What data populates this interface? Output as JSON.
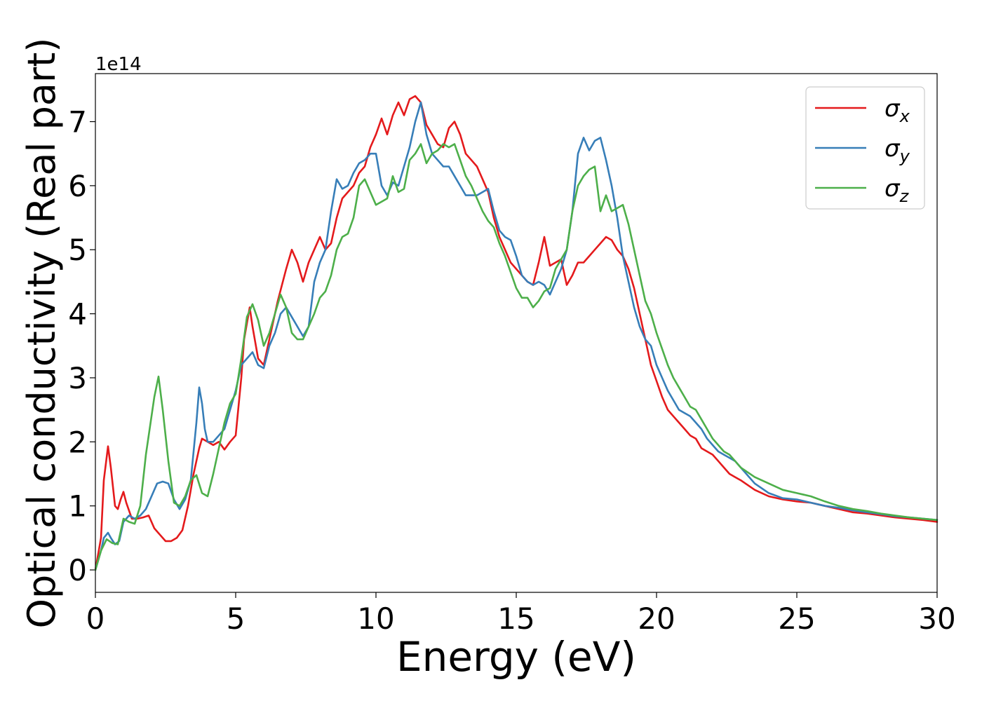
{
  "chart_data": {
    "type": "line",
    "title": "",
    "xlabel": "Energy (eV)",
    "ylabel": "Optical conductivity (Real part)",
    "y_offset_label": "1e14",
    "xlim": [
      0,
      30
    ],
    "ylim": [
      -0.35,
      7.75
    ],
    "xticks": [
      0,
      5,
      10,
      15,
      20,
      25,
      30
    ],
    "yticks": [
      0,
      1,
      2,
      3,
      4,
      5,
      6,
      7
    ],
    "grid": false,
    "legend_position": "top-right",
    "series": [
      {
        "name": "σx",
        "symbol": "σ",
        "subscript": "x",
        "color": "#e41a1c",
        "x": [
          0,
          0.2,
          0.3,
          0.45,
          0.55,
          0.7,
          0.8,
          0.9,
          1.0,
          1.1,
          1.3,
          1.5,
          1.7,
          1.9,
          2.1,
          2.3,
          2.5,
          2.7,
          2.9,
          3.1,
          3.3,
          3.5,
          3.7,
          3.8,
          4.0,
          4.2,
          4.4,
          4.6,
          4.8,
          5.0,
          5.2,
          5.3,
          5.5,
          5.6,
          5.8,
          6.0,
          6.2,
          6.5,
          6.8,
          7.0,
          7.2,
          7.4,
          7.6,
          7.8,
          8.0,
          8.2,
          8.4,
          8.6,
          8.8,
          9.0,
          9.2,
          9.4,
          9.6,
          9.8,
          10.0,
          10.2,
          10.4,
          10.6,
          10.8,
          11.0,
          11.2,
          11.4,
          11.6,
          11.8,
          12.0,
          12.2,
          12.4,
          12.6,
          12.8,
          13.0,
          13.2,
          13.4,
          13.6,
          13.8,
          14.0,
          14.2,
          14.4,
          14.6,
          14.8,
          15.0,
          15.2,
          15.4,
          15.6,
          15.8,
          16.0,
          16.2,
          16.4,
          16.6,
          16.8,
          17.0,
          17.2,
          17.4,
          17.6,
          17.8,
          18.0,
          18.2,
          18.4,
          18.6,
          18.8,
          19.0,
          19.2,
          19.4,
          19.6,
          19.8,
          20.0,
          20.2,
          20.4,
          20.6,
          20.8,
          21.0,
          21.2,
          21.4,
          21.6,
          21.8,
          22.0,
          22.2,
          22.4,
          22.6,
          22.8,
          23.0,
          23.5,
          24.0,
          24.5,
          25.0,
          25.5,
          26.0,
          26.5,
          27.0,
          27.5,
          28.0,
          28.5,
          29.0,
          29.5,
          30.0
        ],
        "y": [
          0.0,
          0.5,
          1.4,
          1.93,
          1.6,
          1.0,
          0.95,
          1.1,
          1.22,
          1.05,
          0.8,
          0.8,
          0.82,
          0.85,
          0.65,
          0.55,
          0.45,
          0.45,
          0.5,
          0.62,
          1.0,
          1.5,
          1.9,
          2.05,
          2.0,
          1.95,
          2.0,
          1.88,
          2.0,
          2.1,
          3.0,
          3.6,
          4.1,
          3.8,
          3.3,
          3.2,
          3.6,
          4.2,
          4.7,
          5.0,
          4.8,
          4.5,
          4.8,
          5.0,
          5.2,
          5.0,
          5.1,
          5.5,
          5.8,
          5.9,
          6.0,
          6.2,
          6.3,
          6.6,
          6.8,
          7.05,
          6.8,
          7.1,
          7.3,
          7.1,
          7.35,
          7.4,
          7.3,
          6.95,
          6.8,
          6.65,
          6.6,
          6.9,
          7.0,
          6.8,
          6.5,
          6.4,
          6.3,
          6.1,
          5.9,
          5.5,
          5.2,
          5.0,
          4.8,
          4.7,
          4.6,
          4.5,
          4.45,
          4.8,
          5.2,
          4.75,
          4.8,
          4.85,
          4.45,
          4.6,
          4.8,
          4.8,
          4.9,
          5.0,
          5.1,
          5.2,
          5.15,
          5.0,
          4.9,
          4.7,
          4.4,
          4.0,
          3.6,
          3.2,
          2.95,
          2.7,
          2.5,
          2.4,
          2.3,
          2.2,
          2.1,
          2.05,
          1.9,
          1.85,
          1.8,
          1.7,
          1.6,
          1.5,
          1.45,
          1.4,
          1.25,
          1.15,
          1.1,
          1.07,
          1.05,
          1.0,
          0.95,
          0.9,
          0.88,
          0.85,
          0.82,
          0.8,
          0.78,
          0.75
        ]
      },
      {
        "name": "σy",
        "symbol": "σ",
        "subscript": "y",
        "color": "#377eb8",
        "x": [
          0,
          0.2,
          0.3,
          0.45,
          0.55,
          0.7,
          0.85,
          1.0,
          1.2,
          1.4,
          1.6,
          1.8,
          2.0,
          2.2,
          2.4,
          2.6,
          2.8,
          3.0,
          3.2,
          3.4,
          3.6,
          3.7,
          3.8,
          3.9,
          4.0,
          4.2,
          4.4,
          4.6,
          4.8,
          5.0,
          5.2,
          5.4,
          5.6,
          5.8,
          6.0,
          6.2,
          6.4,
          6.6,
          6.8,
          7.0,
          7.2,
          7.4,
          7.6,
          7.8,
          8.0,
          8.2,
          8.4,
          8.6,
          8.8,
          9.0,
          9.2,
          9.4,
          9.6,
          9.8,
          10.0,
          10.2,
          10.4,
          10.6,
          10.8,
          11.0,
          11.2,
          11.4,
          11.6,
          11.8,
          12.0,
          12.2,
          12.4,
          12.6,
          12.8,
          13.0,
          13.2,
          13.4,
          13.6,
          13.8,
          14.0,
          14.2,
          14.4,
          14.6,
          14.8,
          15.0,
          15.2,
          15.4,
          15.6,
          15.8,
          16.0,
          16.2,
          16.4,
          16.6,
          16.8,
          17.0,
          17.2,
          17.4,
          17.6,
          17.8,
          18.0,
          18.2,
          18.4,
          18.6,
          18.8,
          19.0,
          19.2,
          19.4,
          19.6,
          19.8,
          20.0,
          20.2,
          20.4,
          20.6,
          20.8,
          21.0,
          21.2,
          21.4,
          21.6,
          21.8,
          22.0,
          22.2,
          22.4,
          22.6,
          22.8,
          23.0,
          23.5,
          24.0,
          24.5,
          25.0,
          25.5,
          26.0,
          26.5,
          27.0,
          27.5,
          28.0,
          28.5,
          29.0,
          29.5,
          30.0
        ],
        "y": [
          0.0,
          0.3,
          0.5,
          0.58,
          0.5,
          0.4,
          0.45,
          0.75,
          0.85,
          0.8,
          0.85,
          0.95,
          1.15,
          1.35,
          1.38,
          1.35,
          1.1,
          0.95,
          1.1,
          1.4,
          2.3,
          2.85,
          2.6,
          2.2,
          2.0,
          2.0,
          2.1,
          2.2,
          2.5,
          2.8,
          3.2,
          3.3,
          3.4,
          3.2,
          3.15,
          3.5,
          3.7,
          4.0,
          4.1,
          3.95,
          3.8,
          3.65,
          3.8,
          4.5,
          4.8,
          5.0,
          5.6,
          6.1,
          5.95,
          6.0,
          6.2,
          6.35,
          6.4,
          6.5,
          6.5,
          6.0,
          5.85,
          6.05,
          6.0,
          6.3,
          6.6,
          7.0,
          7.3,
          6.8,
          6.5,
          6.4,
          6.3,
          6.3,
          6.15,
          6.0,
          5.85,
          5.85,
          5.85,
          5.9,
          5.95,
          5.6,
          5.3,
          5.2,
          5.15,
          4.9,
          4.6,
          4.5,
          4.45,
          4.5,
          4.45,
          4.3,
          4.5,
          4.7,
          5.0,
          5.6,
          6.5,
          6.75,
          6.55,
          6.7,
          6.75,
          6.4,
          6.0,
          5.5,
          4.9,
          4.5,
          4.1,
          3.8,
          3.6,
          3.5,
          3.2,
          3.0,
          2.8,
          2.65,
          2.5,
          2.45,
          2.4,
          2.3,
          2.2,
          2.05,
          1.95,
          1.85,
          1.8,
          1.75,
          1.7,
          1.6,
          1.35,
          1.2,
          1.12,
          1.1,
          1.05,
          1.0,
          0.97,
          0.93,
          0.9,
          0.87,
          0.84,
          0.82,
          0.8,
          0.78
        ]
      },
      {
        "name": "σz",
        "symbol": "σ",
        "subscript": "z",
        "color": "#4daf4a",
        "x": [
          0,
          0.2,
          0.4,
          0.6,
          0.8,
          1.0,
          1.2,
          1.4,
          1.6,
          1.8,
          2.0,
          2.1,
          2.25,
          2.4,
          2.6,
          2.8,
          3.0,
          3.2,
          3.4,
          3.6,
          3.8,
          4.0,
          4.2,
          4.4,
          4.6,
          4.8,
          5.0,
          5.2,
          5.4,
          5.6,
          5.8,
          6.0,
          6.2,
          6.4,
          6.6,
          6.8,
          7.0,
          7.2,
          7.4,
          7.6,
          7.8,
          8.0,
          8.2,
          8.4,
          8.6,
          8.8,
          9.0,
          9.2,
          9.4,
          9.6,
          9.8,
          10.0,
          10.2,
          10.4,
          10.6,
          10.8,
          11.0,
          11.2,
          11.4,
          11.6,
          11.8,
          12.0,
          12.2,
          12.4,
          12.6,
          12.8,
          13.0,
          13.2,
          13.4,
          13.6,
          13.8,
          14.0,
          14.2,
          14.4,
          14.6,
          14.8,
          15.0,
          15.2,
          15.4,
          15.6,
          15.8,
          16.0,
          16.2,
          16.4,
          16.6,
          16.8,
          17.0,
          17.2,
          17.4,
          17.6,
          17.8,
          18.0,
          18.2,
          18.4,
          18.6,
          18.8,
          19.0,
          19.2,
          19.4,
          19.6,
          19.8,
          20.0,
          20.2,
          20.4,
          20.6,
          20.8,
          21.0,
          21.2,
          21.4,
          21.6,
          21.8,
          22.0,
          22.2,
          22.4,
          22.6,
          22.8,
          23.0,
          23.5,
          24.0,
          24.5,
          25.0,
          25.5,
          26.0,
          26.5,
          27.0,
          27.5,
          28.0,
          28.5,
          29.0,
          29.5,
          30.0
        ],
        "y": [
          0.0,
          0.3,
          0.48,
          0.42,
          0.4,
          0.8,
          0.75,
          0.72,
          1.0,
          1.8,
          2.4,
          2.7,
          3.02,
          2.5,
          1.7,
          1.05,
          1.0,
          1.15,
          1.4,
          1.48,
          1.2,
          1.15,
          1.5,
          1.9,
          2.3,
          2.6,
          2.75,
          3.3,
          3.95,
          4.15,
          3.9,
          3.5,
          3.7,
          4.0,
          4.3,
          4.1,
          3.7,
          3.6,
          3.6,
          3.8,
          4.0,
          4.25,
          4.35,
          4.6,
          5.0,
          5.2,
          5.25,
          5.5,
          6.0,
          6.1,
          5.9,
          5.7,
          5.75,
          5.8,
          6.15,
          5.9,
          5.95,
          6.4,
          6.5,
          6.65,
          6.35,
          6.5,
          6.55,
          6.65,
          6.6,
          6.65,
          6.4,
          6.15,
          6.0,
          5.8,
          5.6,
          5.45,
          5.35,
          5.1,
          4.9,
          4.65,
          4.4,
          4.25,
          4.25,
          4.1,
          4.2,
          4.35,
          4.4,
          4.7,
          4.85,
          5.0,
          5.6,
          6.0,
          6.15,
          6.25,
          6.3,
          5.6,
          5.85,
          5.6,
          5.65,
          5.7,
          5.4,
          5.0,
          4.6,
          4.2,
          4.0,
          3.7,
          3.45,
          3.2,
          3.0,
          2.85,
          2.7,
          2.55,
          2.5,
          2.35,
          2.2,
          2.05,
          1.95,
          1.85,
          1.8,
          1.7,
          1.6,
          1.45,
          1.35,
          1.25,
          1.2,
          1.15,
          1.07,
          1.0,
          0.95,
          0.92,
          0.88,
          0.85,
          0.82,
          0.8,
          0.78
        ]
      }
    ]
  }
}
